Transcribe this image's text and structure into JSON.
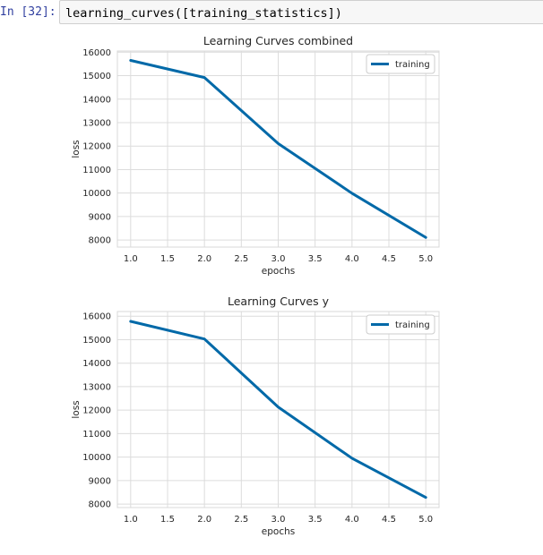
{
  "cell": {
    "prompt": "In [32]:",
    "code": "learning_curves([training_statistics])"
  },
  "chart_data": [
    {
      "type": "line",
      "title": "Learning Curves combined",
      "xlabel": "epochs",
      "ylabel": "loss",
      "x": [
        1.0,
        2.0,
        3.0,
        4.0,
        5.0
      ],
      "series": [
        {
          "name": "training",
          "values": [
            15650,
            14920,
            12110,
            9990,
            8110
          ]
        }
      ],
      "xticks": [
        "1.0",
        "1.5",
        "2.0",
        "2.5",
        "3.0",
        "3.5",
        "4.0",
        "4.5",
        "5.0"
      ],
      "yticks": [
        "8000",
        "9000",
        "10000",
        "11000",
        "12000",
        "13000",
        "14000",
        "15000",
        "16000"
      ],
      "xlim": [
        0.82,
        5.18
      ],
      "ylim": [
        7700,
        16050
      ],
      "grid": true,
      "legend": "top-right",
      "color": "#0069a8"
    },
    {
      "type": "line",
      "title": "Learning Curves y",
      "xlabel": "epochs",
      "ylabel": "loss",
      "x": [
        1.0,
        2.0,
        3.0,
        4.0,
        5.0
      ],
      "series": [
        {
          "name": "training",
          "values": [
            15780,
            15030,
            12130,
            9950,
            8280
          ]
        }
      ],
      "xticks": [
        "1.0",
        "1.5",
        "2.0",
        "2.5",
        "3.0",
        "3.5",
        "4.0",
        "4.5",
        "5.0"
      ],
      "yticks": [
        "8000",
        "9000",
        "10000",
        "11000",
        "12000",
        "13000",
        "14000",
        "15000",
        "16000"
      ],
      "xlim": [
        0.82,
        5.18
      ],
      "ylim": [
        7850,
        16200
      ],
      "grid": true,
      "legend": "top-right",
      "color": "#0069a8"
    }
  ]
}
